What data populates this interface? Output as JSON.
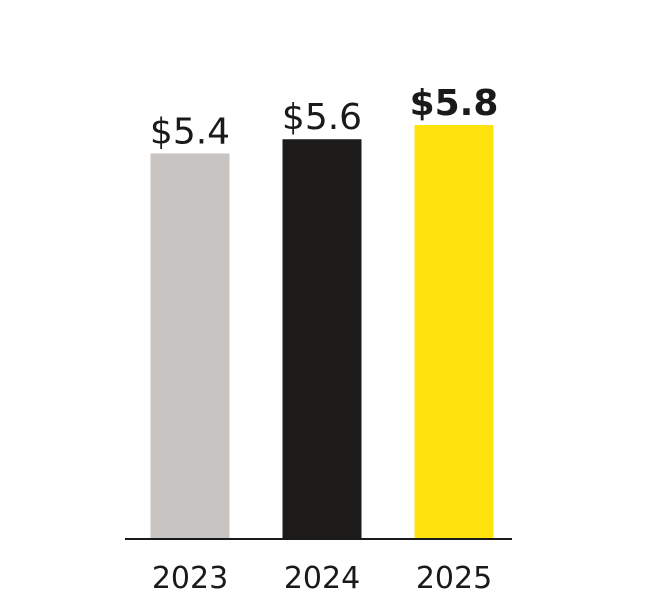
{
  "chart_data": {
    "type": "bar",
    "categories": [
      "2023",
      "2024",
      "2025"
    ],
    "values": [
      5.4,
      5.6,
      5.8
    ],
    "data_labels": [
      "$5.4",
      "$5.6",
      "$5.8"
    ],
    "bar_colors": [
      "#c7c4c1",
      "#1c1b19",
      "#ffe30f"
    ],
    "highlight_index": 2,
    "axis_color": "#1a1a1a",
    "ylim": [
      0,
      5.8
    ],
    "grid": false,
    "legend": "none"
  }
}
